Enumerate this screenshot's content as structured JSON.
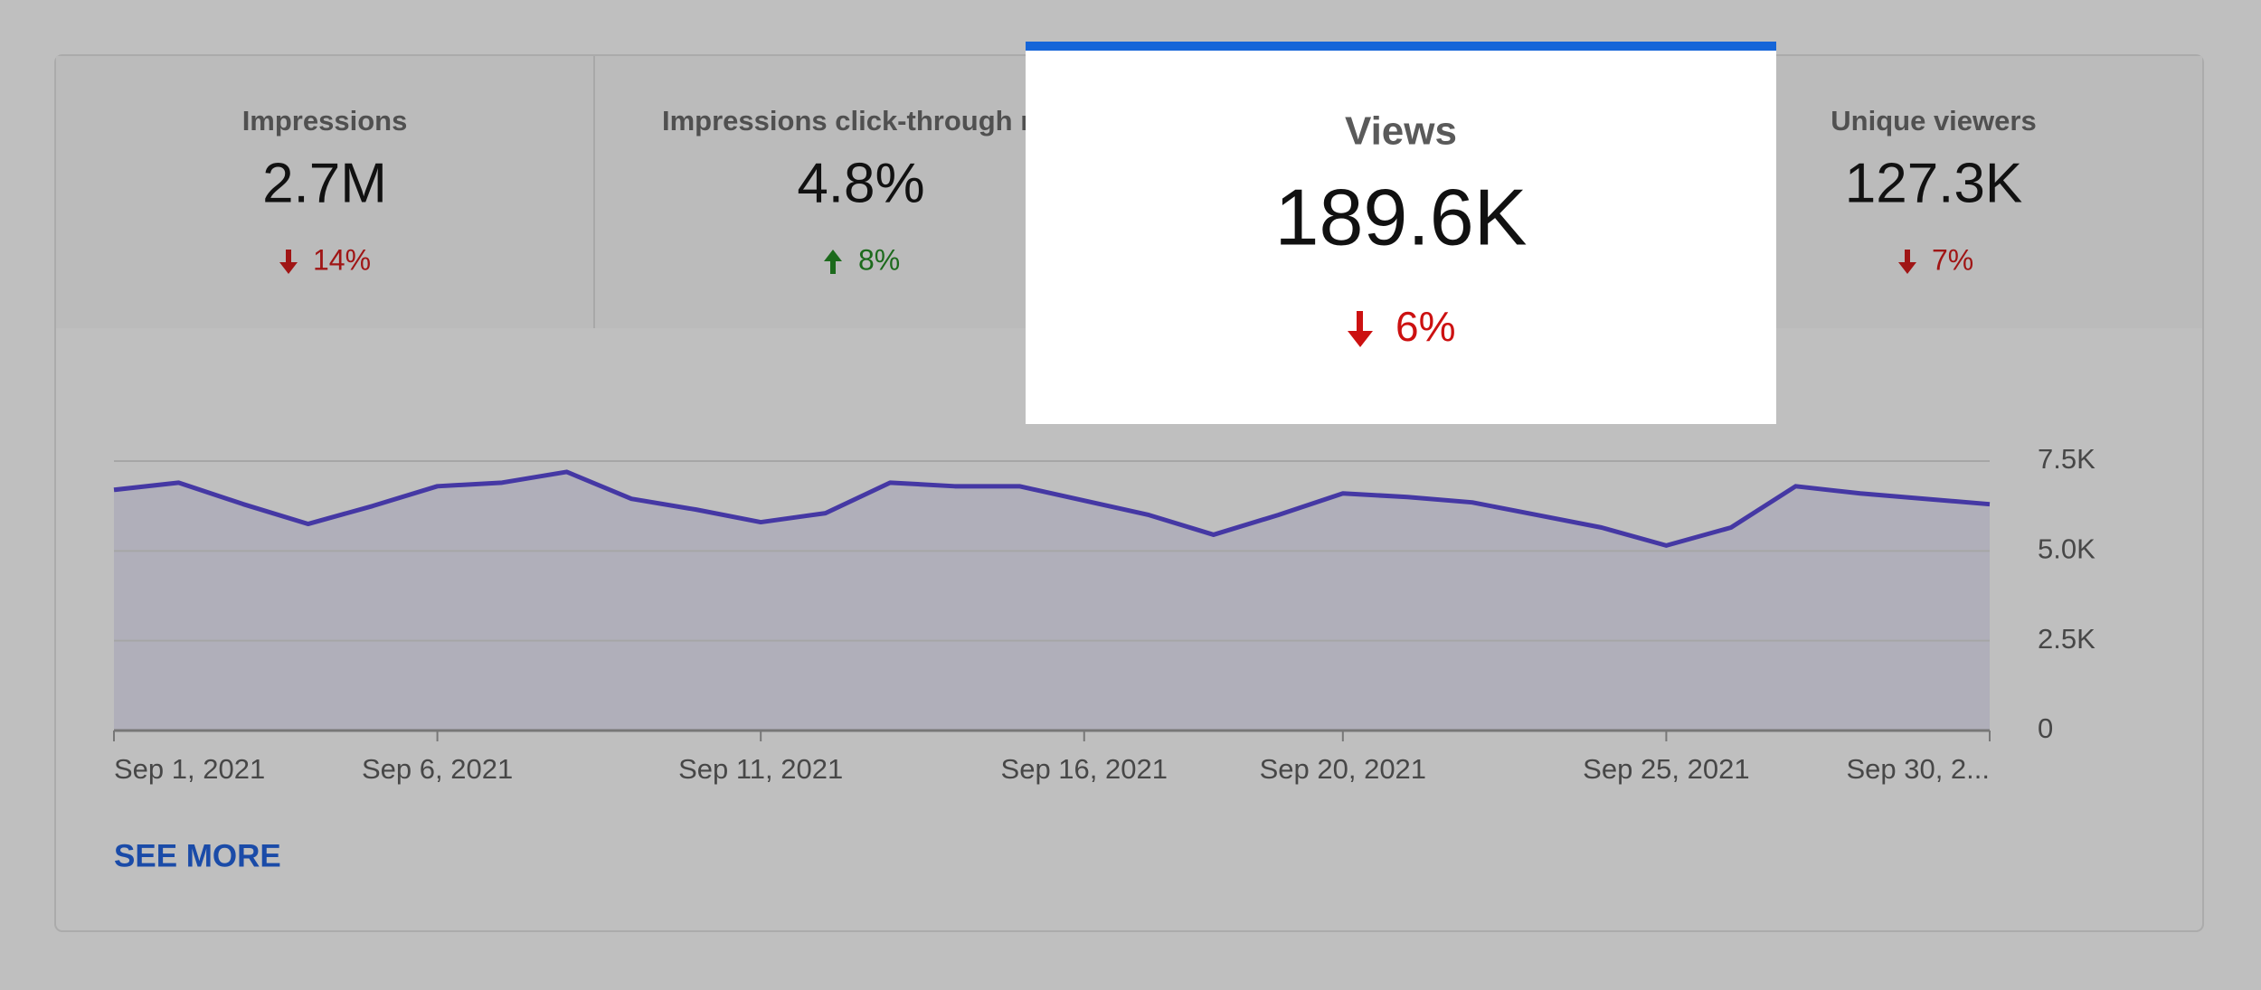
{
  "metrics": [
    {
      "title": "Impressions",
      "value": "2.7M",
      "change": "14%"
    },
    {
      "title": "Impressions click-through rate",
      "value": "4.8%",
      "change": "8%"
    },
    {
      "title": "Views",
      "value": "189.6K",
      "change": "6%"
    },
    {
      "title": "Unique viewers",
      "value": "127.3K",
      "change": "7%"
    }
  ],
  "chart_data": {
    "type": "area",
    "categories": [
      "Sep 1, 2021",
      null,
      null,
      null,
      null,
      "Sep 6, 2021",
      null,
      null,
      null,
      null,
      "Sep 11, 2021",
      null,
      null,
      null,
      null,
      "Sep 16, 2021",
      null,
      null,
      null,
      "Sep 20, 2021",
      null,
      null,
      null,
      null,
      "Sep 25, 2021",
      null,
      null,
      null,
      null,
      "Sep 30, 2..."
    ],
    "values": [
      6700,
      6900,
      6300,
      5750,
      6250,
      6800,
      6900,
      7200,
      6450,
      6150,
      5800,
      6050,
      6900,
      6800,
      6800,
      6400,
      6000,
      5450,
      6000,
      6600,
      6500,
      6350,
      6000,
      5650,
      5150,
      5650,
      6800,
      6600,
      6450,
      6300
    ],
    "color": "#4538a4",
    "fill": "#b0afba",
    "ylim": [
      0,
      7500
    ],
    "yticks": [
      0,
      {
        "value": 2500,
        "label": "2.5K"
      },
      {
        "value": 5000,
        "label": "5.0K"
      },
      {
        "value": 7500,
        "label": "7.5K"
      }
    ],
    "grid": true
  },
  "see_more": "SEE MORE"
}
